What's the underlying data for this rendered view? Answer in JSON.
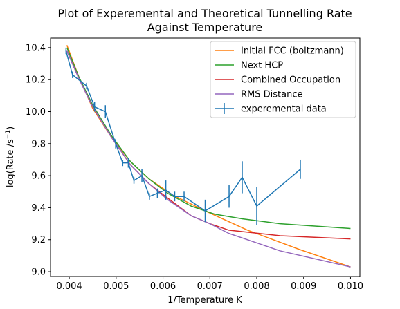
{
  "chart_data": {
    "type": "line",
    "title_line1": "Plot of Experemental and Theoretical Tunnelling Rate",
    "title_line2": "Against Temperature",
    "xlabel": "1/Temperature K",
    "ylabel_main": "log(Rate /s",
    "ylabel_sup": "−1",
    "ylabel_close": ")",
    "xlim": [
      0.0036,
      0.0102
    ],
    "ylim": [
      8.97,
      10.46
    ],
    "xticks": [
      {
        "v": 0.004,
        "label": "0.004"
      },
      {
        "v": 0.005,
        "label": "0.005"
      },
      {
        "v": 0.006,
        "label": "0.006"
      },
      {
        "v": 0.007,
        "label": "0.007"
      },
      {
        "v": 0.008,
        "label": "0.008"
      },
      {
        "v": 0.009,
        "label": "0.009"
      },
      {
        "v": 0.01,
        "label": "0.010"
      }
    ],
    "yticks": [
      {
        "v": 9.0,
        "label": "9.0"
      },
      {
        "v": 9.2,
        "label": "9.2"
      },
      {
        "v": 9.4,
        "label": "9.4"
      },
      {
        "v": 9.6,
        "label": "9.6"
      },
      {
        "v": 9.8,
        "label": "9.8"
      },
      {
        "v": 10.0,
        "label": "10.0"
      },
      {
        "v": 10.2,
        "label": "10.2"
      },
      {
        "v": 10.4,
        "label": "10.4"
      }
    ],
    "legend_position": "top-right",
    "series": [
      {
        "name": "Initial FCC (boltzmann)",
        "color": "#ff7f0e",
        "kind": "line",
        "x": [
          0.00395,
          0.0042,
          0.0045,
          0.0049,
          0.0053,
          0.0057,
          0.0062,
          0.0069,
          0.0078,
          0.0089,
          0.01
        ],
        "y": [
          10.415,
          10.22,
          10.02,
          9.84,
          9.69,
          9.58,
          9.48,
          9.38,
          9.26,
          9.14,
          9.03
        ]
      },
      {
        "name": "Next HCP",
        "color": "#2ca02c",
        "kind": "line",
        "x": [
          0.00395,
          0.0042,
          0.0045,
          0.0049,
          0.0053,
          0.0057,
          0.0061,
          0.0066,
          0.0071,
          0.0077,
          0.0085,
          0.01
        ],
        "y": [
          10.4,
          10.22,
          10.04,
          9.85,
          9.69,
          9.58,
          9.49,
          9.41,
          9.36,
          9.33,
          9.3,
          9.27
        ]
      },
      {
        "name": "Combined Occupation",
        "color": "#d62728",
        "kind": "line",
        "x": [
          0.00395,
          0.0042,
          0.0045,
          0.0049,
          0.0053,
          0.0057,
          0.0061,
          0.0066,
          0.007,
          0.0074,
          0.0085,
          0.01
        ],
        "y": [
          10.38,
          10.21,
          10.03,
          9.84,
          9.67,
          9.55,
          9.46,
          9.35,
          9.3,
          9.26,
          9.225,
          9.205
        ]
      },
      {
        "name": "RMS Distance",
        "color": "#9467bd",
        "kind": "line",
        "x": [
          0.00395,
          0.0042,
          0.0045,
          0.0049,
          0.0053,
          0.0057,
          0.0061,
          0.0066,
          0.007,
          0.0074,
          0.0085,
          0.01
        ],
        "y": [
          10.38,
          10.21,
          10.03,
          9.84,
          9.67,
          9.55,
          9.45,
          9.35,
          9.3,
          9.24,
          9.13,
          9.03
        ]
      },
      {
        "name": "experemental data",
        "color": "#1f77b4",
        "kind": "errorbar",
        "x": [
          0.00393,
          0.00407,
          0.00437,
          0.00454,
          0.00477,
          0.00499,
          0.00514,
          0.00526,
          0.00538,
          0.00555,
          0.00571,
          0.00588,
          0.00606,
          0.00625,
          0.00645,
          0.0069,
          0.00741,
          0.00769,
          0.008,
          0.00893
        ],
        "y": [
          10.38,
          10.23,
          10.16,
          10.03,
          10.0,
          9.8,
          9.68,
          9.68,
          9.57,
          9.6,
          9.47,
          9.49,
          9.51,
          9.47,
          9.47,
          9.38,
          9.47,
          9.59,
          9.41,
          9.64
        ],
        "err": [
          0.02,
          0.02,
          0.02,
          0.03,
          0.04,
          0.03,
          0.02,
          0.03,
          0.02,
          0.04,
          0.02,
          0.03,
          0.06,
          0.03,
          0.03,
          0.07,
          0.07,
          0.1,
          0.12,
          0.06
        ]
      }
    ]
  }
}
